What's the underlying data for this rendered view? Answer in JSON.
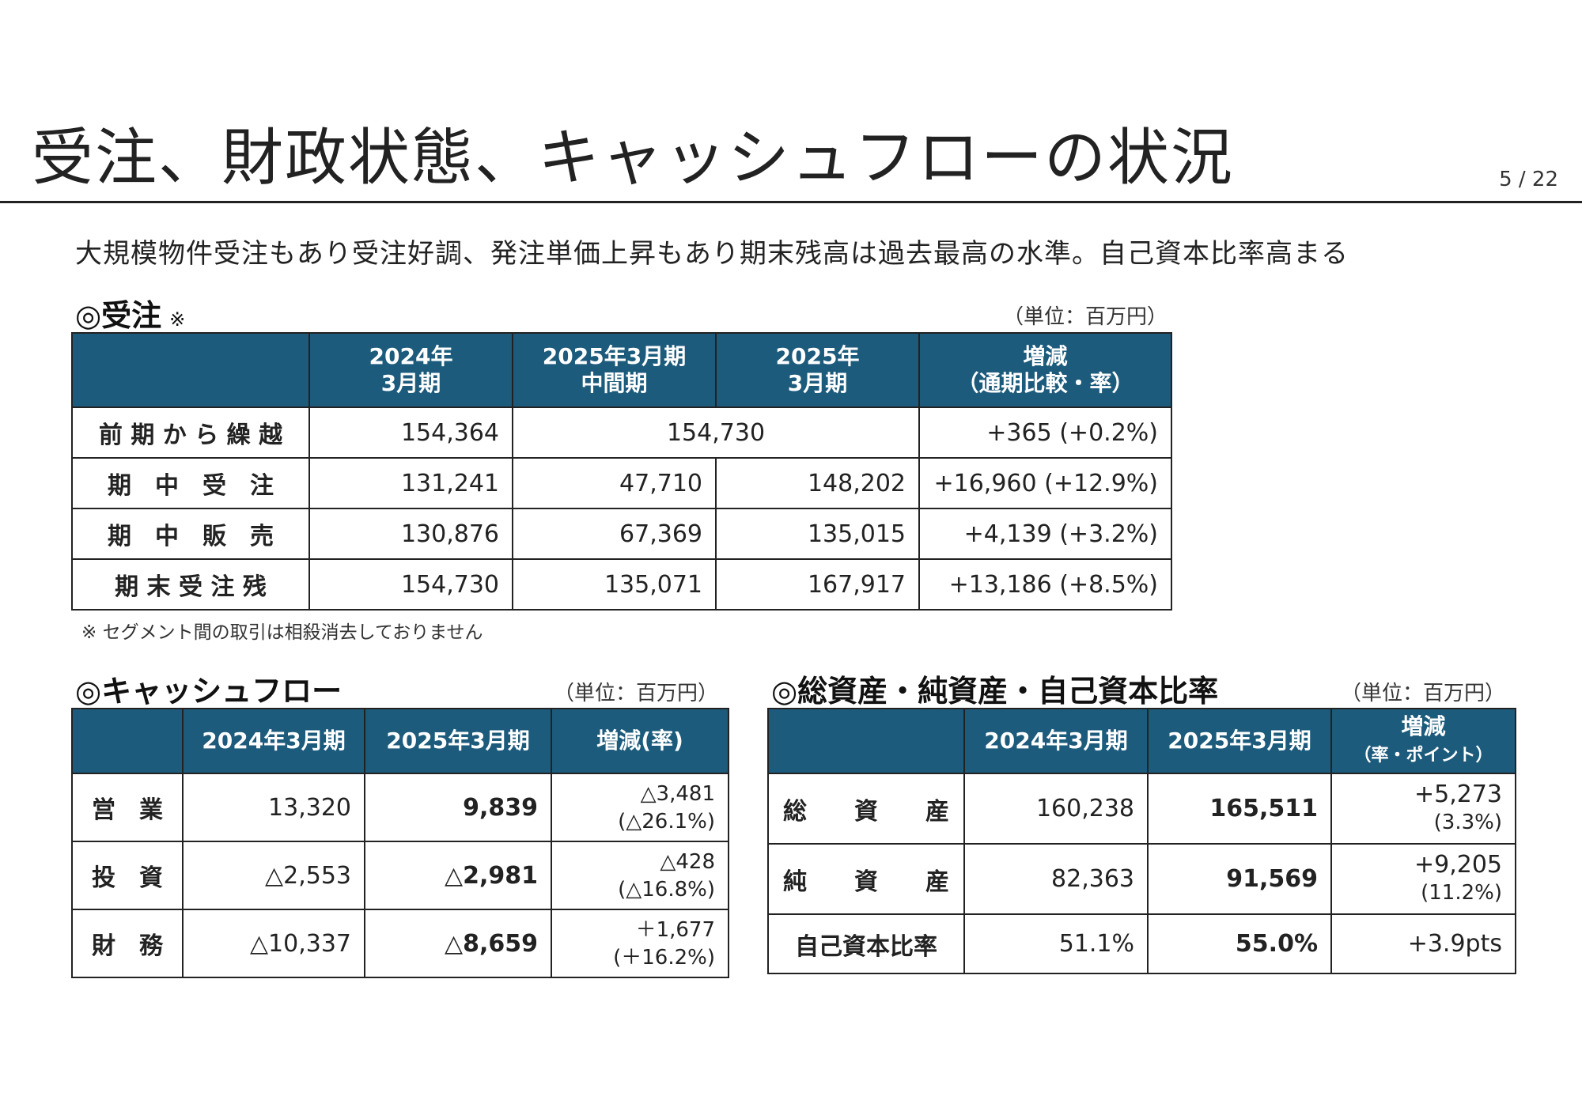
{
  "header": {
    "title": "受注、財政状態、キャッシュフローの状況",
    "page": "5 / 22"
  },
  "subtitle": "大規模物件受注もあり受注好調、発注単価上昇もあり期末残高は過去最高の水準。自己資本比率高まる",
  "orders": {
    "title": "◎受注",
    "note_mark": "※",
    "unit": "（単位：百万円）",
    "columns": [
      {
        "line1": "2024年",
        "line2": "3月期"
      },
      {
        "line1": "2025年3月期",
        "line2": "中間期"
      },
      {
        "line1": "2025年",
        "line2": "3月期"
      },
      {
        "line1": "増減",
        "line2": "（通期比較・率）"
      }
    ],
    "rows": [
      {
        "label": "前 期 か ら 繰 越",
        "v2024": "154,364",
        "merged": "154,730",
        "change": "+365 (+0.2%)"
      },
      {
        "label": "期　中　受　注",
        "v2024": "131,241",
        "interim": "47,710",
        "v2025": "148,202",
        "change": "+16,960 (+12.9%)"
      },
      {
        "label": "期　中　販　売",
        "v2024": "130,876",
        "interim": "67,369",
        "v2025": "135,015",
        "change": "+4,139 (+3.2%)"
      },
      {
        "label": "期 末 受 注 残",
        "v2024": "154,730",
        "interim": "135,071",
        "v2025": "167,917",
        "change": "+13,186 (+8.5%)"
      }
    ],
    "footnote": "※ セグメント間の取引は相殺消去しておりません"
  },
  "cashflow": {
    "title": "◎キャッシュフロー",
    "unit": "（単位：百万円）",
    "columns": [
      "2024年3月期",
      "2025年3月期",
      "増減(率)"
    ],
    "rows": [
      {
        "label": "営　業",
        "v2024": "13,320",
        "v2025": "9,839",
        "change": "△3,481",
        "rate": "(△26.1%)"
      },
      {
        "label": "投　資",
        "v2024": "△2,553",
        "v2025": "△2,981",
        "change": "△428",
        "rate": "(△16.8%)"
      },
      {
        "label": "財　務",
        "v2024": "△10,337",
        "v2025": "△8,659",
        "change": "＋1,677",
        "rate": "(＋16.2%)"
      }
    ]
  },
  "balance": {
    "title": "◎総資産・純資産・自己資本比率",
    "unit": "（単位：百万円）",
    "columns": [
      {
        "line1": "2024年3月期"
      },
      {
        "line1": "2025年3月期"
      },
      {
        "line1": "増減",
        "line2": "（率・ポイント）"
      }
    ],
    "rows": [
      {
        "label": "総　　資　　産",
        "v2024": "160,238",
        "v2025": "165,511",
        "change": "+5,273",
        "rate": "(3.3%)"
      },
      {
        "label": "純　　資　　産",
        "v2024": "82,363",
        "v2025": "91,569",
        "change": "+9,205",
        "rate": "(11.2%)"
      },
      {
        "label": "自己資本比率",
        "v2024": "51.1%",
        "v2025": "55.0%",
        "change": "+3.9pts"
      }
    ]
  }
}
